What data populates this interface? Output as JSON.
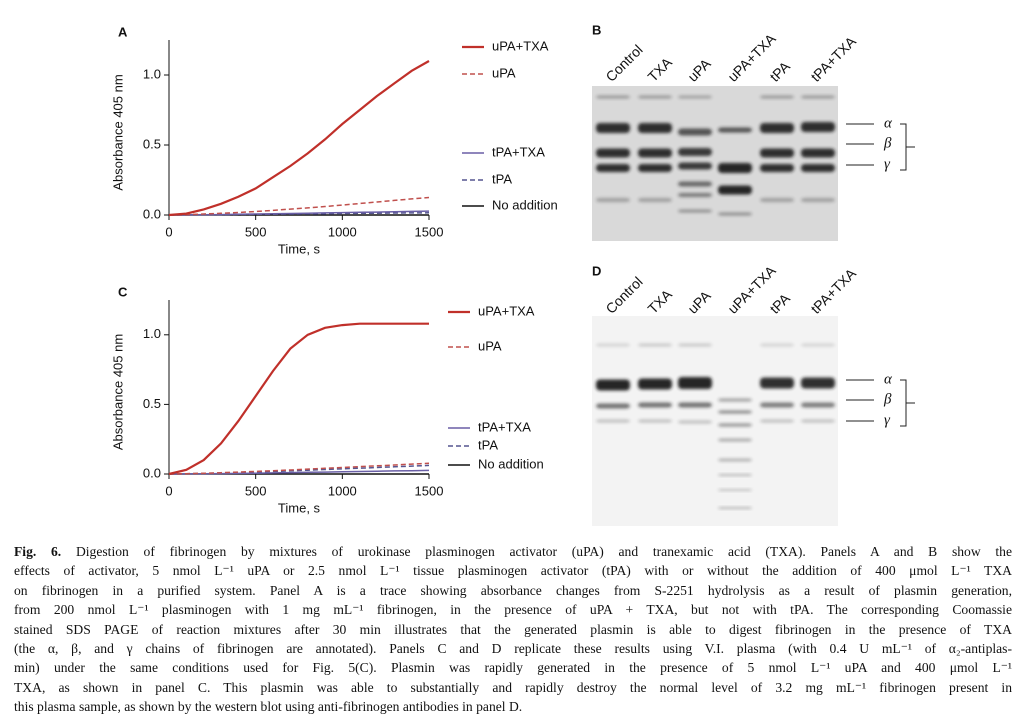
{
  "chart_data": [
    {
      "type": "line",
      "title": "A",
      "xlabel": "Time, s",
      "ylabel": "Absorbance 405 nm",
      "x": [
        0,
        100,
        200,
        300,
        400,
        500,
        600,
        700,
        800,
        900,
        1000,
        1100,
        1200,
        1300,
        1400,
        1500
      ],
      "xlim": [
        0,
        1500
      ],
      "xticks": [
        0,
        500,
        1000,
        1500
      ],
      "ylim": [
        0,
        1.25
      ],
      "yticks": [
        {
          "value": 0,
          "label": "0.0"
        },
        0.5,
        {
          "value": 1,
          "label": "1.0"
        }
      ],
      "series": [
        {
          "name": "uPA+TXA",
          "color": "#c0302a",
          "style": "solid",
          "values": [
            0,
            0.01,
            0.04,
            0.08,
            0.13,
            0.19,
            0.27,
            0.35,
            0.44,
            0.54,
            0.65,
            0.75,
            0.85,
            0.94,
            1.03,
            1.1
          ]
        },
        {
          "name": "uPA",
          "color": "#c0504d",
          "style": "dashed",
          "values": [
            0,
            0.003,
            0.007,
            0.012,
            0.018,
            0.025,
            0.033,
            0.042,
            0.051,
            0.061,
            0.071,
            0.082,
            0.093,
            0.104,
            0.115,
            0.125
          ]
        },
        {
          "name": "tPA+TXA",
          "color": "#6a5fa6",
          "style": "solid",
          "values": [
            0,
            0.001,
            0.002,
            0.003,
            0.005,
            0.007,
            0.009,
            0.011,
            0.013,
            0.015,
            0.017,
            0.019,
            0.021,
            0.023,
            0.026,
            0.028
          ]
        },
        {
          "name": "tPA",
          "color": "#55558f",
          "style": "dashed",
          "values": [
            0,
            0.001,
            0.002,
            0.003,
            0.004,
            0.005,
            0.006,
            0.007,
            0.008,
            0.009,
            0.011,
            0.012,
            0.013,
            0.014,
            0.015,
            0.016
          ]
        },
        {
          "name": "No addition",
          "color": "#111111",
          "style": "solid",
          "values": [
            0,
            0,
            0,
            0,
            0,
            0,
            0,
            0,
            0,
            0,
            0,
            0,
            0,
            0,
            0,
            0
          ]
        }
      ]
    },
    {
      "type": "line",
      "title": "C",
      "xlabel": "Time, s",
      "ylabel": "Absorbance 405 nm",
      "x": [
        0,
        100,
        200,
        300,
        400,
        500,
        600,
        700,
        800,
        900,
        1000,
        1100,
        1200,
        1300,
        1400,
        1500
      ],
      "xlim": [
        0,
        1500
      ],
      "xticks": [
        0,
        500,
        1000,
        1500
      ],
      "ylim": [
        0,
        1.25
      ],
      "yticks": [
        {
          "value": 0,
          "label": "0.0"
        },
        0.5,
        {
          "value": 1,
          "label": "1.0"
        }
      ],
      "series": [
        {
          "name": "uPA+TXA",
          "color": "#c0302a",
          "style": "solid",
          "values": [
            0,
            0.03,
            0.1,
            0.22,
            0.38,
            0.56,
            0.74,
            0.9,
            1.0,
            1.05,
            1.07,
            1.08,
            1.08,
            1.08,
            1.08,
            1.08
          ]
        },
        {
          "name": "uPA",
          "color": "#c0504d",
          "style": "dashed",
          "values": [
            0,
            0.002,
            0.005,
            0.009,
            0.014,
            0.019,
            0.024,
            0.029,
            0.035,
            0.041,
            0.047,
            0.053,
            0.059,
            0.065,
            0.071,
            0.077
          ]
        },
        {
          "name": "tPA+TXA",
          "color": "#6a5fa6",
          "style": "solid",
          "values": [
            0,
            0.001,
            0.002,
            0.003,
            0.004,
            0.006,
            0.008,
            0.01,
            0.012,
            0.014,
            0.016,
            0.018,
            0.02,
            0.022,
            0.024,
            0.026
          ]
        },
        {
          "name": "tPA",
          "color": "#55558f",
          "style": "dashed",
          "values": [
            0,
            0.002,
            0.004,
            0.007,
            0.01,
            0.014,
            0.018,
            0.022,
            0.027,
            0.032,
            0.037,
            0.042,
            0.047,
            0.052,
            0.057,
            0.062
          ]
        },
        {
          "name": "No addition",
          "color": "#111111",
          "style": "solid",
          "values": [
            0,
            0,
            0,
            0,
            0,
            0,
            0,
            0,
            0,
            0,
            0,
            0,
            0,
            0,
            0,
            0
          ]
        }
      ]
    }
  ],
  "gels": [
    {
      "panel": "B",
      "lanes": [
        "Control",
        "TXA",
        "uPA",
        "uPA+TXA",
        "tPA",
        "tPA+TXA"
      ],
      "chains": [
        "α",
        "β",
        "γ"
      ]
    },
    {
      "panel": "D",
      "lanes": [
        "Control",
        "TXA",
        "uPA",
        "uPA+TXA",
        "tPA",
        "tPA+TXA"
      ],
      "chains": [
        "α",
        "β",
        "γ"
      ]
    }
  ],
  "caption": {
    "label": "Fig. 6.",
    "lines": [
      " Digestion of fibrinogen by mixtures of urokinase plasminogen activator (uPA) and tranexamic acid (TXA). Panels A and B show the",
      "effects of activator, 5 nmol L⁻¹ uPA or 2.5 nmol L⁻¹ tissue plasminogen activator (tPA) with or without the addition of 400 μmol L⁻¹ TXA",
      "on fibrinogen in a purified system. Panel A is a trace showing absorbance changes from S-2251 hydrolysis as a result of plasmin generation,",
      "from 200 nmol L⁻¹ plasminogen with 1 mg mL⁻¹ fibrinogen, in the presence of uPA + TXA, but not with tPA. The corresponding Coomassie",
      "stained SDS PAGE of reaction mixtures after 30 min illustrates that the generated plasmin is able to digest fibrinogen in the presence of TXA",
      "(the α, β, and γ chains of fibrinogen are annotated). Panels C and D replicate these results using V.I. plasma (with 0.4 U mL⁻¹ of α₂-antiplas-",
      "min) under the same conditions used for Fig. 5(C). Plasmin was rapidly generated in the presence of 5 nmol L⁻¹ uPA and 400 μmol L⁻¹",
      "TXA, as shown in panel C. This plasmin was able to substantially and rapidly destroy the normal level of 3.2 mg mL⁻¹ fibrinogen present in",
      "this plasma sample, as shown by the western blot using anti-fibrinogen antibodies in panel D."
    ]
  }
}
